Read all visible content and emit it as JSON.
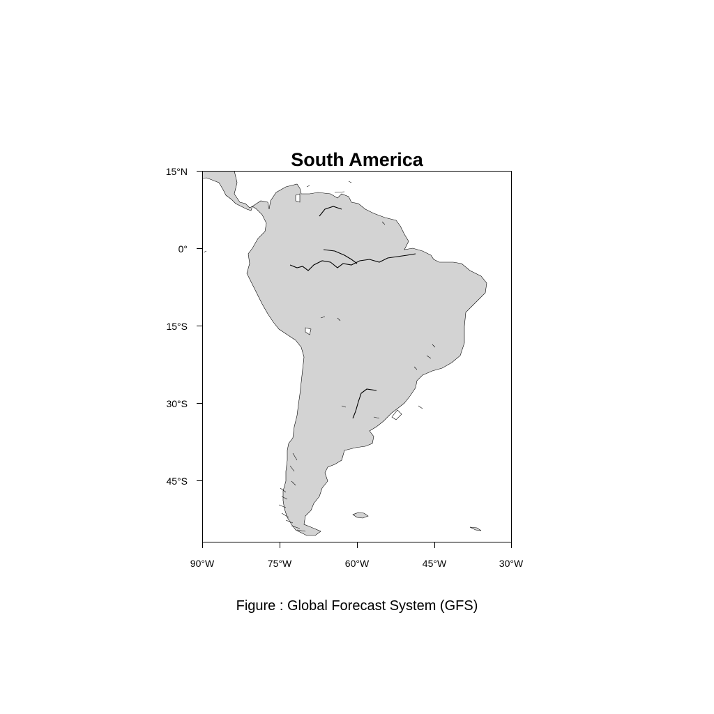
{
  "map": {
    "title": "South America",
    "caption": "Figure : Global Forecast System (GFS)",
    "land_color": "#d3d3d3",
    "coast_color": "#000000",
    "extent": {
      "lon_min": -90,
      "lon_max": -30,
      "lat_min": -57,
      "lat_max": 15
    },
    "y_ticks": [
      {
        "value": 15,
        "label": "15°N"
      },
      {
        "value": 0,
        "label": "0°"
      },
      {
        "value": -15,
        "label": "15°S"
      },
      {
        "value": -30,
        "label": "30°S"
      },
      {
        "value": -45,
        "label": "45°S"
      }
    ],
    "x_ticks": [
      {
        "value": -90,
        "label": "90°W"
      },
      {
        "value": -75,
        "label": "75°W"
      },
      {
        "value": -60,
        "label": "60°W"
      },
      {
        "value": -45,
        "label": "45°W"
      },
      {
        "value": -30,
        "label": "30°W"
      }
    ]
  }
}
